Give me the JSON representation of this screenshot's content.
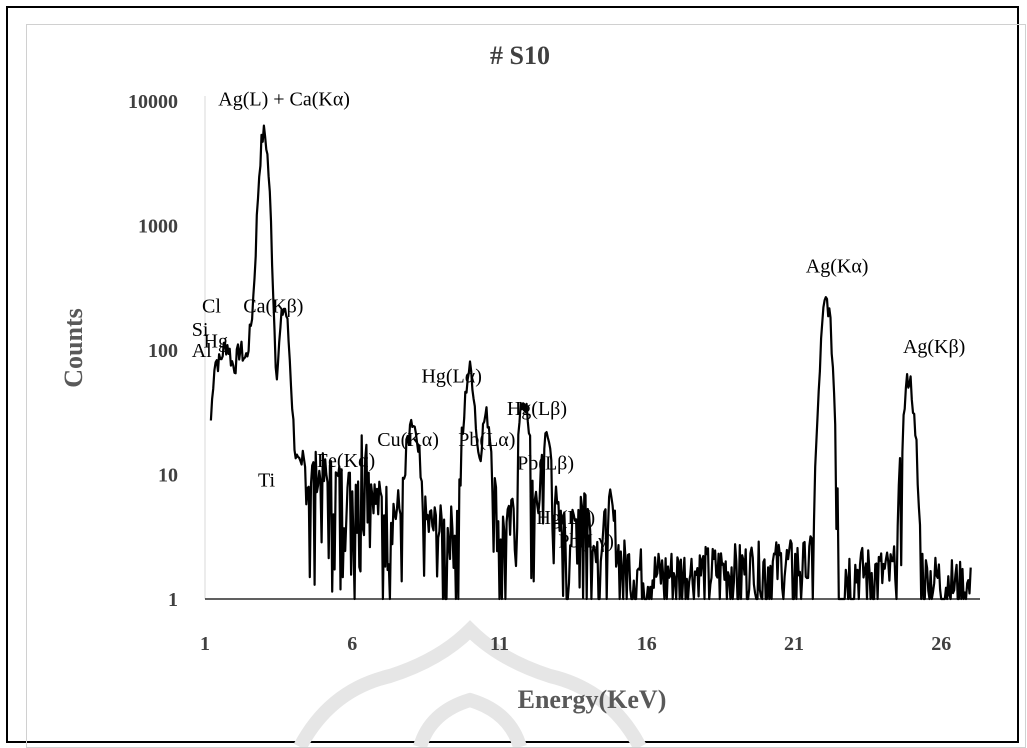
{
  "chart_data": {
    "type": "line",
    "title": "# S10",
    "xlabel": "Energy(KeV)",
    "ylabel": "Counts",
    "xlim": [
      1,
      27
    ],
    "ylim": [
      1,
      10000
    ],
    "y_scale": "log",
    "grid": false,
    "legend": "none",
    "x_ticks": [
      "1",
      "6",
      "11",
      "16",
      "21",
      "26"
    ],
    "y_ticks": [
      "1",
      "10",
      "100",
      "1000",
      "10000"
    ],
    "line_color": "#000000",
    "peaks": [
      {
        "label": "Al",
        "x": 1.35,
        "y": 80
      },
      {
        "label": "Si",
        "x": 1.74,
        "y": 110
      },
      {
        "label": "Cl",
        "x": 2.62,
        "y": 150
      },
      {
        "label": "Hg",
        "x": 2.2,
        "y": 100
      },
      {
        "label": "Ag(L) + Ca(Kα)",
        "x": 3.0,
        "y": 5500
      },
      {
        "label": "Ca(Kβ)",
        "x": 3.69,
        "y": 220
      },
      {
        "label": "Ti",
        "x": 4.5,
        "y": 8
      },
      {
        "label": "Fe(Kα)",
        "x": 6.4,
        "y": 14
      },
      {
        "label": "Cu(Kα)",
        "x": 8.05,
        "y": 25
      },
      {
        "label": "Hg(Lα)",
        "x": 9.99,
        "y": 70
      },
      {
        "label": "Pb(Lα)",
        "x": 10.55,
        "y": 30
      },
      {
        "label": "Hg(Lβ)",
        "x": 11.82,
        "y": 40
      },
      {
        "label": "Pb(Lβ)",
        "x": 12.61,
        "y": 20
      },
      {
        "label": "Hg(Lγ)",
        "x": 13.83,
        "y": 6
      },
      {
        "label": "Pb(Lγ)",
        "x": 14.76,
        "y": 4
      },
      {
        "label": "Ag(Kα)",
        "x": 22.1,
        "y": 250
      },
      {
        "label": "Ag(Kβ)",
        "x": 24.9,
        "y": 60
      }
    ],
    "baseline": [
      {
        "x": 1.2,
        "y": 1
      },
      {
        "x": 1.3,
        "y": 25
      },
      {
        "x": 1.6,
        "y": 60
      },
      {
        "x": 2.5,
        "y": 45
      },
      {
        "x": 4.5,
        "y": 9
      },
      {
        "x": 6.0,
        "y": 6
      },
      {
        "x": 9.0,
        "y": 3
      },
      {
        "x": 13.0,
        "y": 3
      },
      {
        "x": 16.0,
        "y": 1.3
      },
      {
        "x": 21.0,
        "y": 1.6
      },
      {
        "x": 26.0,
        "y": 1.2
      },
      {
        "x": 27.0,
        "y": 1
      }
    ]
  },
  "annotations": [
    {
      "text": "Ag(L) + Ca(Kα)",
      "x": 1.45,
      "y": 9200
    },
    {
      "text": "Cl",
      "x": 0.9,
      "y": 200
    },
    {
      "text": "Ca(Kβ)",
      "x": 2.3,
      "y": 200
    },
    {
      "text": "Si",
      "x": 0.55,
      "y": 130
    },
    {
      "text": "Hg",
      "x": 0.95,
      "y": 105
    },
    {
      "text": "Al",
      "x": 0.55,
      "y": 88
    },
    {
      "text": "Ti",
      "x": 2.8,
      "y": 8
    },
    {
      "text": "Fe(Kα)",
      "x": 4.8,
      "y": 11.5
    },
    {
      "text": "Cu(Kα)",
      "x": 6.85,
      "y": 17
    },
    {
      "text": "Pb(Lα)",
      "x": 9.6,
      "y": 17
    },
    {
      "text": "Hg(Lα)",
      "x": 8.35,
      "y": 55
    },
    {
      "text": "Hg(Lβ)",
      "x": 11.25,
      "y": 30
    },
    {
      "text": "Pb(Lβ)",
      "x": 11.6,
      "y": 11
    },
    {
      "text": "Hg(Lγ)",
      "x": 12.25,
      "y": 4
    },
    {
      "text": "Pb(Lγ)",
      "x": 13.0,
      "y": 2.6
    },
    {
      "text": "Ag(Kα)",
      "x": 21.4,
      "y": 420
    },
    {
      "text": "Ag(Kβ)",
      "x": 24.7,
      "y": 95
    }
  ]
}
